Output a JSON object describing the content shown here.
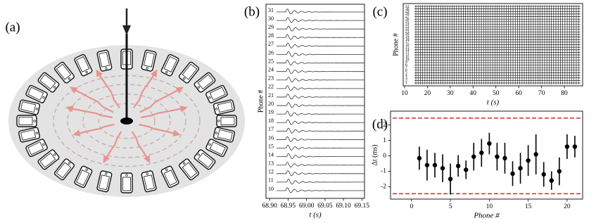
{
  "panel_labels": [
    "(a)",
    "(b)",
    "(c)",
    "(d)"
  ],
  "chart_data": [
    {
      "type": "waveform",
      "x_label": "t (s)",
      "y_label": "Phone #",
      "categories": [
        "31",
        "30",
        "29",
        "28",
        "27",
        "26",
        "25",
        "24",
        "23",
        "22",
        "21",
        "20",
        "19",
        "18",
        "17",
        "16",
        "15",
        "14",
        "13",
        "12",
        "11",
        "10"
      ],
      "xlim": [
        68.89,
        69.157
      ],
      "xticks": [
        {
          "value": 68.9,
          "label": "68.90"
        },
        68.95,
        {
          "value": 69.0,
          "label": "69.00"
        },
        69.05,
        {
          "value": 69.1,
          "label": "69.10"
        },
        69.15
      ]
    },
    {
      "type": "spikes",
      "x_label": "t (s)",
      "y_label": "Phone #",
      "categories": [
        "31",
        "30",
        "29",
        "28",
        "27",
        "26",
        "25",
        "24",
        "23",
        "22",
        "21",
        "20",
        "19",
        "18",
        "17",
        "16",
        "15",
        "14",
        "13",
        "12",
        "11",
        "10",
        "9",
        "8",
        "7",
        "6",
        "5",
        "4",
        "3",
        "2",
        "1"
      ],
      "xlim": [
        9.4,
        88
      ],
      "xticks": [
        10,
        20,
        30,
        40,
        50,
        60,
        70,
        80
      ]
    },
    {
      "type": "scatter",
      "x_label": "Phone #",
      "y_label": "Δt (ms)",
      "color": "#000000",
      "x": [
        1,
        2,
        3,
        4,
        5,
        6,
        7,
        8,
        9,
        10,
        11,
        12,
        13,
        14,
        15,
        16,
        17,
        18,
        19,
        20,
        21
      ],
      "values": [
        -0.15,
        -0.6,
        -0.6,
        -0.8,
        -1.5,
        -0.65,
        -0.9,
        -0.05,
        0.2,
        0.8,
        -0.05,
        -0.15,
        -1.15,
        -0.8,
        -0.3,
        0.1,
        -1.2,
        -1.6,
        -1.0,
        0.6,
        0.6
      ],
      "errors": [
        0.75,
        1.0,
        0.8,
        0.9,
        1.0,
        0.7,
        0.6,
        0.9,
        0.9,
        0.7,
        0.9,
        1.0,
        0.8,
        1.0,
        1.0,
        1.3,
        0.8,
        0.6,
        0.9,
        0.8,
        0.7
      ],
      "hlines": [
        2.45,
        -2.45
      ],
      "hline_color": "#d62728",
      "xlim": [
        -2.7,
        22
      ],
      "xticks": [
        0,
        5,
        10,
        15,
        20
      ],
      "ylim": [
        -2.8,
        2.9
      ],
      "yticks": [
        -2,
        -1,
        0,
        1,
        2
      ]
    }
  ]
}
